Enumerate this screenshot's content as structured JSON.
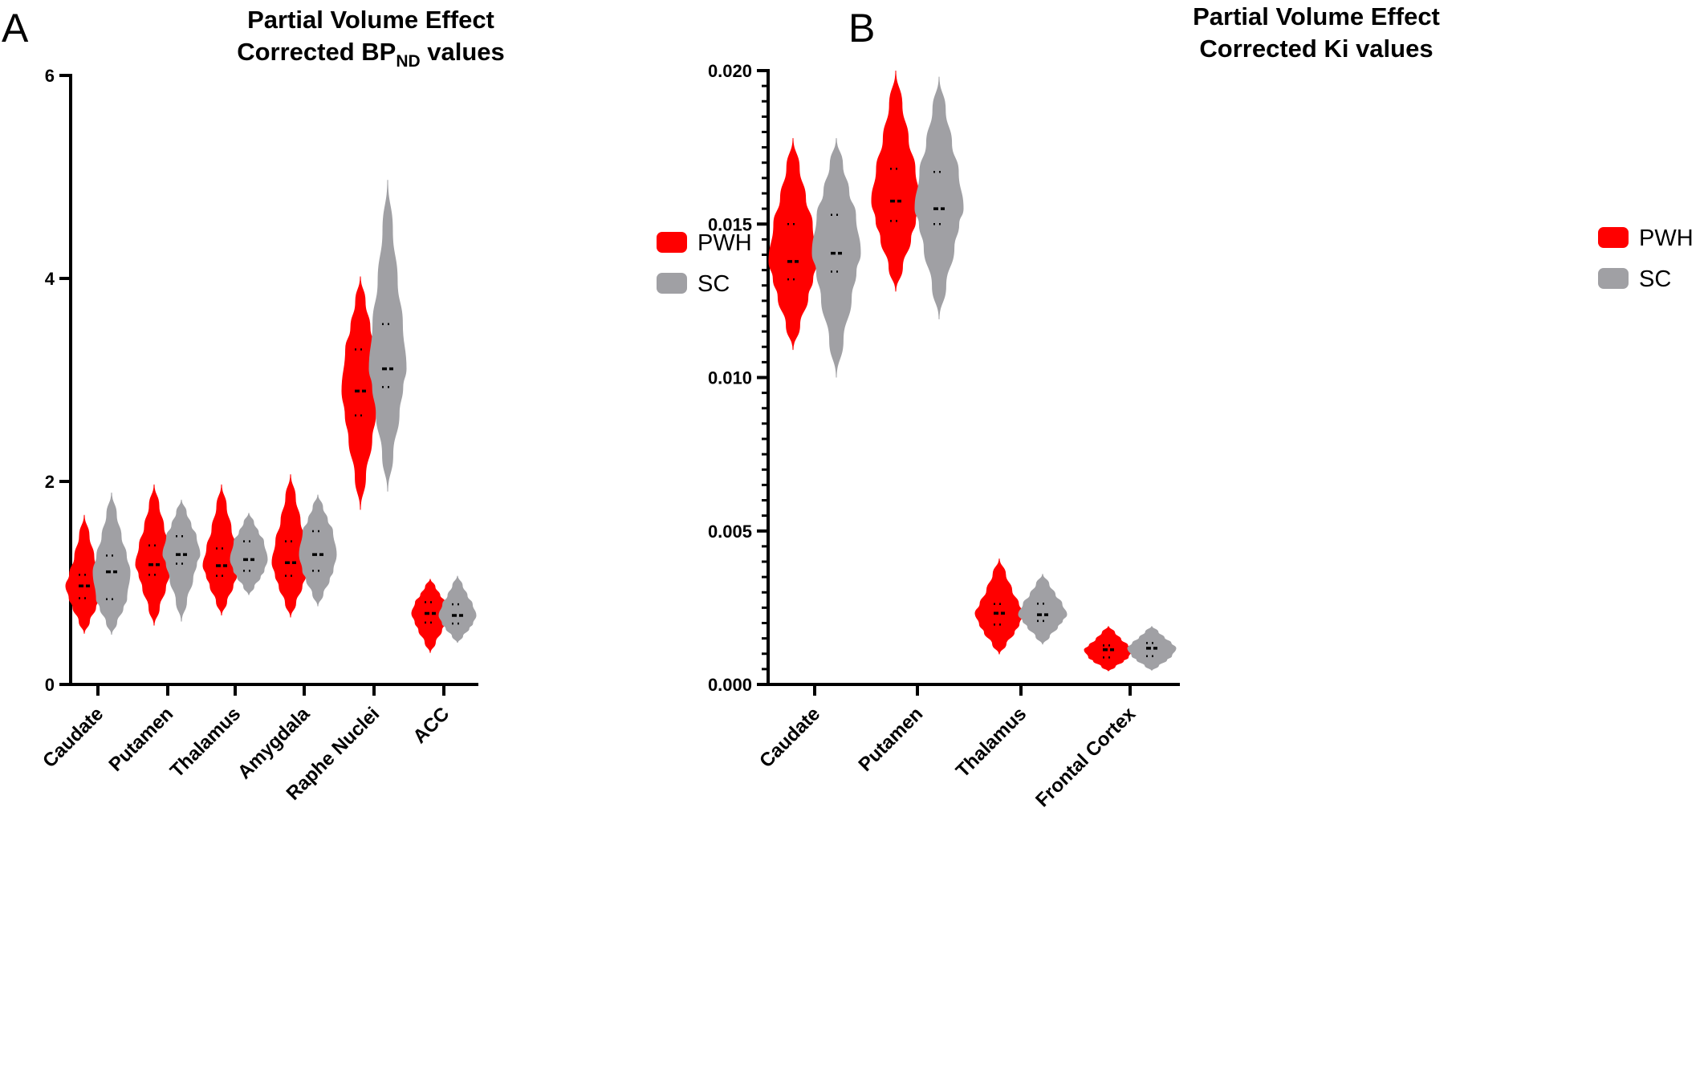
{
  "chart_data": [
    {
      "panel": "A",
      "type": "violin",
      "title_line1": "Partial Volume Effect",
      "title_line2_prefix": "Corrected BP",
      "title_line2_sub": "ND",
      "title_line2_suffix": " values",
      "xlabel": "",
      "ylabel": "",
      "ylim": [
        0,
        6
      ],
      "yticks": [
        0,
        2,
        4,
        6
      ],
      "ytick_labels": [
        "0",
        "2",
        "4",
        "6"
      ],
      "minor_ticks": false,
      "categories": [
        "Caudate",
        "Putamen",
        "Thalamus",
        "Amygdala",
        "Raphe Nuclei",
        "ACC"
      ],
      "legend_position": "right",
      "series": [
        {
          "name": "PWH",
          "color": "#ff0000",
          "min": [
            0.5,
            0.58,
            0.68,
            0.66,
            1.72,
            0.31
          ],
          "max": [
            1.67,
            1.97,
            1.97,
            2.07,
            4.02,
            1.04
          ],
          "q1": [
            0.85,
            1.08,
            1.07,
            1.07,
            2.65,
            0.61
          ],
          "median": [
            0.97,
            1.18,
            1.17,
            1.2,
            2.89,
            0.7
          ],
          "q3": [
            1.08,
            1.37,
            1.34,
            1.41,
            3.3,
            0.81
          ]
        },
        {
          "name": "SC",
          "color": "#a0a0a4",
          "min": [
            0.49,
            0.62,
            0.88,
            0.77,
            1.9,
            0.41
          ],
          "max": [
            1.89,
            1.82,
            1.69,
            1.87,
            4.97,
            1.07
          ],
          "q1": [
            0.84,
            1.19,
            1.12,
            1.12,
            2.93,
            0.6
          ],
          "median": [
            1.11,
            1.28,
            1.23,
            1.28,
            3.11,
            0.68
          ],
          "q3": [
            1.27,
            1.46,
            1.41,
            1.51,
            3.55,
            0.79
          ]
        }
      ]
    },
    {
      "panel": "B",
      "type": "violin",
      "title_line1": "Partial Volume Effect",
      "title_line2": "Corrected Ki values",
      "xlabel": "",
      "ylabel": "",
      "ylim": [
        0,
        0.02
      ],
      "yticks": [
        0,
        0.005,
        0.01,
        0.015,
        0.02
      ],
      "ytick_labels": [
        "0.000",
        "0.005",
        "0.010",
        "0.015",
        "0.020"
      ],
      "minor_ticks": true,
      "categories": [
        "Caudate",
        "Putamen",
        "Thalamus",
        "Frontal Cortex"
      ],
      "legend_position": "right",
      "series": [
        {
          "name": "PWH",
          "color": "#ff0000",
          "min": [
            0.0109,
            0.0128,
            0.00098,
            0.00043
          ],
          "max": [
            0.0178,
            0.02,
            0.0041,
            0.0019
          ],
          "q1": [
            0.0132,
            0.0151,
            0.00195,
            0.00088
          ],
          "median": [
            0.01378,
            0.01575,
            0.00232,
            0.00113
          ],
          "q3": [
            0.015,
            0.0168,
            0.00262,
            0.00127
          ]
        },
        {
          "name": "SC",
          "color": "#a0a0a4",
          "min": [
            0.01,
            0.0119,
            0.0013,
            0.00045
          ],
          "max": [
            0.0178,
            0.0198,
            0.0036,
            0.0019
          ],
          "q1": [
            0.01345,
            0.015,
            0.00207,
            0.00092
          ],
          "median": [
            0.01405,
            0.0155,
            0.00227,
            0.00118
          ],
          "q3": [
            0.0153,
            0.0167,
            0.00263,
            0.00135
          ]
        }
      ]
    }
  ]
}
